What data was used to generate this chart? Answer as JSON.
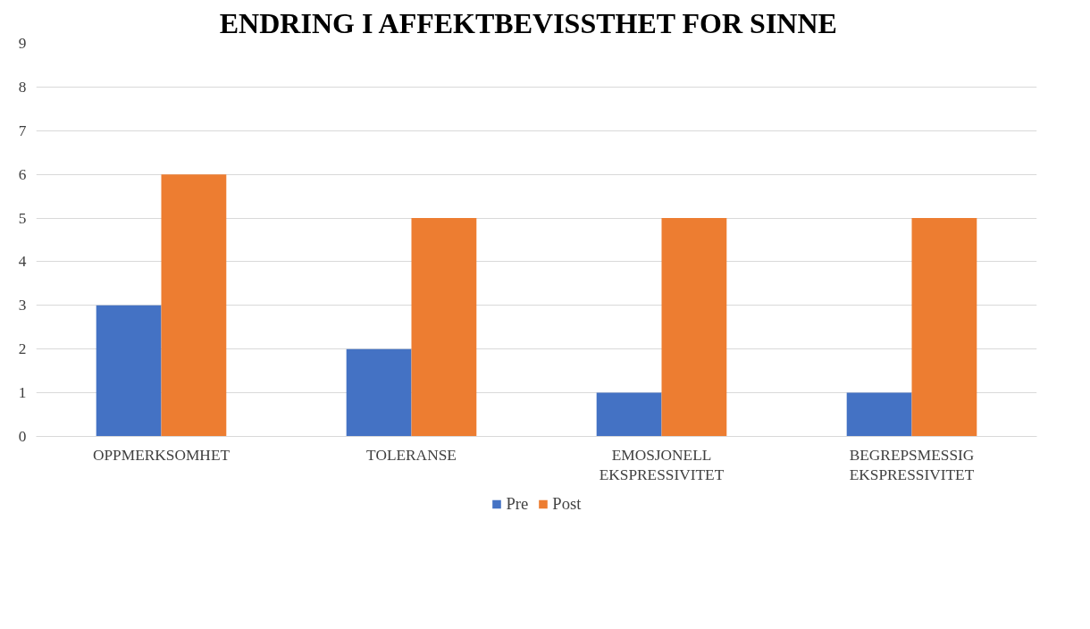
{
  "chart_data": {
    "type": "bar",
    "title": "ENDRING I AFFEKTBEVISSTHET  FOR  SINNE",
    "categories": [
      "OPPMERKSOMHET",
      "TOLERANSE",
      "EMOSJONELL\nEKSPRESSIVITET",
      "BEGREPSMESSIG\nEKSPRESSIVITET"
    ],
    "series": [
      {
        "name": "Pre",
        "color": "#4472c4",
        "values": [
          3,
          2,
          1,
          1
        ]
      },
      {
        "name": "Post",
        "color": "#ed7d31",
        "values": [
          6,
          5,
          5,
          5
        ]
      }
    ],
    "ylim": [
      0,
      9
    ],
    "yticks": [
      0,
      1,
      2,
      3,
      4,
      5,
      6,
      7,
      8,
      9
    ],
    "grid": "y",
    "legend": "bottom"
  }
}
